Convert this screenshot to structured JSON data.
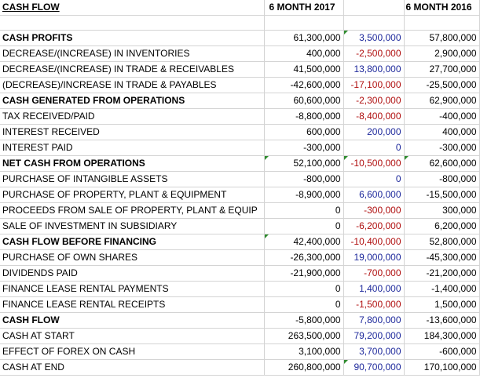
{
  "header": {
    "title": "CASH FLOW",
    "col_2017": "6 MONTH 2017",
    "col_diff": "",
    "col_2016": "6 MONTH 2016"
  },
  "rows": [
    {
      "label": "CASH PROFITS",
      "v2017": "61,300,000",
      "diff": "3,500,000",
      "v2016": "57,800,000",
      "bold": true,
      "diff_color": "blue"
    },
    {
      "label": "DECREASE/(INCREASE) IN INVENTORIES",
      "v2017": "400,000",
      "diff": "-2,500,000",
      "v2016": "2,900,000",
      "bold": false,
      "diff_color": "red"
    },
    {
      "label": "DECREASE/(INCREASE) IN TRADE & RECEIVABLES",
      "v2017": "41,500,000",
      "diff": "13,800,000",
      "v2016": "27,700,000",
      "bold": false,
      "diff_color": "blue"
    },
    {
      "label": "(DECREASE)/INCREASE IN TRADE & PAYABLES",
      "v2017": "-42,600,000",
      "diff": "-17,100,000",
      "v2016": "-25,500,000",
      "bold": false,
      "diff_color": "red"
    },
    {
      "label": "CASH GENERATED FROM OPERATIONS",
      "v2017": "60,600,000",
      "diff": "-2,300,000",
      "v2016": "62,900,000",
      "bold": true,
      "diff_color": "red"
    },
    {
      "label": "TAX RECEIVED/PAID",
      "v2017": "-8,800,000",
      "diff": "-8,400,000",
      "v2016": "-400,000",
      "bold": false,
      "diff_color": "red"
    },
    {
      "label": "INTEREST RECEIVED",
      "v2017": "600,000",
      "diff": "200,000",
      "v2016": "400,000",
      "bold": false,
      "diff_color": "blue"
    },
    {
      "label": "INTEREST PAID",
      "v2017": "-300,000",
      "diff": "0",
      "v2016": "-300,000",
      "bold": false,
      "diff_color": "blue"
    },
    {
      "label": "NET CASH FROM OPERATIONS",
      "v2017": "52,100,000",
      "diff": "-10,500,000",
      "v2016": "62,600,000",
      "bold": true,
      "diff_color": "red"
    },
    {
      "label": "PURCHASE OF INTANGIBLE ASSETS",
      "v2017": "-800,000",
      "diff": "0",
      "v2016": "-800,000",
      "bold": false,
      "diff_color": "blue"
    },
    {
      "label": "PURCHASE OF PROPERTY, PLANT & EQUIPMENT",
      "v2017": "-8,900,000",
      "diff": "6,600,000",
      "v2016": "-15,500,000",
      "bold": false,
      "diff_color": "blue"
    },
    {
      "label": "PROCEEDS FROM SALE OF PROPERTY, PLANT & EQUIP",
      "v2017": "0",
      "diff": "-300,000",
      "v2016": "300,000",
      "bold": false,
      "diff_color": "red"
    },
    {
      "label": "SALE OF INVESTMENT IN SUBSIDIARY",
      "v2017": "0",
      "diff": "-6,200,000",
      "v2016": "6,200,000",
      "bold": false,
      "diff_color": "red"
    },
    {
      "label": "CASH FLOW BEFORE FINANCING",
      "v2017": "42,400,000",
      "diff": "-10,400,000",
      "v2016": "52,800,000",
      "bold": true,
      "diff_color": "red"
    },
    {
      "label": "PURCHASE OF OWN SHARES",
      "v2017": "-26,300,000",
      "diff": "19,000,000",
      "v2016": "-45,300,000",
      "bold": false,
      "diff_color": "blue"
    },
    {
      "label": "DIVIDENDS PAID",
      "v2017": "-21,900,000",
      "diff": "-700,000",
      "v2016": "-21,200,000",
      "bold": false,
      "diff_color": "red"
    },
    {
      "label": "FINANCE LEASE RENTAL PAYMENTS",
      "v2017": "0",
      "diff": "1,400,000",
      "v2016": "-1,400,000",
      "bold": false,
      "diff_color": "blue"
    },
    {
      "label": "FINANCE LEASE RENTAL RECEIPTS",
      "v2017": "0",
      "diff": "-1,500,000",
      "v2016": "1,500,000",
      "bold": false,
      "diff_color": "red"
    },
    {
      "label": "CASH FLOW",
      "v2017": "-5,800,000",
      "diff": "7,800,000",
      "v2016": "-13,600,000",
      "bold": true,
      "diff_color": "blue"
    },
    {
      "label": "CASH AT START",
      "v2017": "263,500,000",
      "diff": "79,200,000",
      "v2016": "184,300,000",
      "bold": false,
      "diff_color": "blue"
    },
    {
      "label": "EFFECT OF FOREX ON CASH",
      "v2017": "3,100,000",
      "diff": "3,700,000",
      "v2016": "-600,000",
      "bold": false,
      "diff_color": "blue"
    },
    {
      "label": "CASH AT END",
      "v2017": "260,800,000",
      "diff": "90,700,000",
      "v2016": "170,100,000",
      "bold": false,
      "diff_color": "blue"
    }
  ],
  "colors": {
    "diff_blue": "#1f2a9c",
    "diff_red": "#b01010",
    "gridline": "#d4d4d4",
    "cell_marker": "#2e8b2e"
  }
}
